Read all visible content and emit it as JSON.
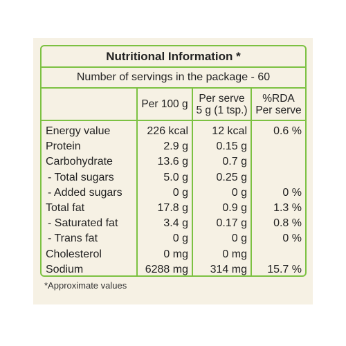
{
  "title": "Nutritional Information *",
  "subtitle": "Number of servings in the package - 60",
  "table": {
    "columns": [
      [
        "Per 100 g"
      ],
      [
        "Per serve",
        "5 g (1 tsp.)"
      ],
      [
        "%RDA",
        "Per serve"
      ]
    ],
    "rows": [
      [
        "Energy value",
        "226 kcal",
        "12 kcal",
        "0.6 %"
      ],
      [
        "Protein",
        "2.9 g",
        "0.15 g",
        null
      ],
      [
        "Carbohydrate",
        "13.6 g",
        "0.7 g",
        null
      ],
      [
        "- Total sugars",
        "5.0 g",
        "0.25 g",
        null
      ],
      [
        "- Added sugars",
        "0 g",
        "0 g",
        "0 %"
      ],
      [
        "Total fat",
        "17.8 g",
        "0.9 g",
        "1.3 %"
      ],
      [
        "- Saturated fat",
        "3.4 g",
        "0.17 g",
        "0.8 %"
      ],
      [
        "- Trans fat",
        "0 g",
        "0 g",
        "0 %"
      ],
      [
        "Cholesterol",
        "0 mg",
        "0 mg",
        null
      ],
      [
        "Sodium",
        "6288 mg",
        "314 mg",
        "15.7 %"
      ]
    ]
  },
  "footnote": "*Approximate values"
}
